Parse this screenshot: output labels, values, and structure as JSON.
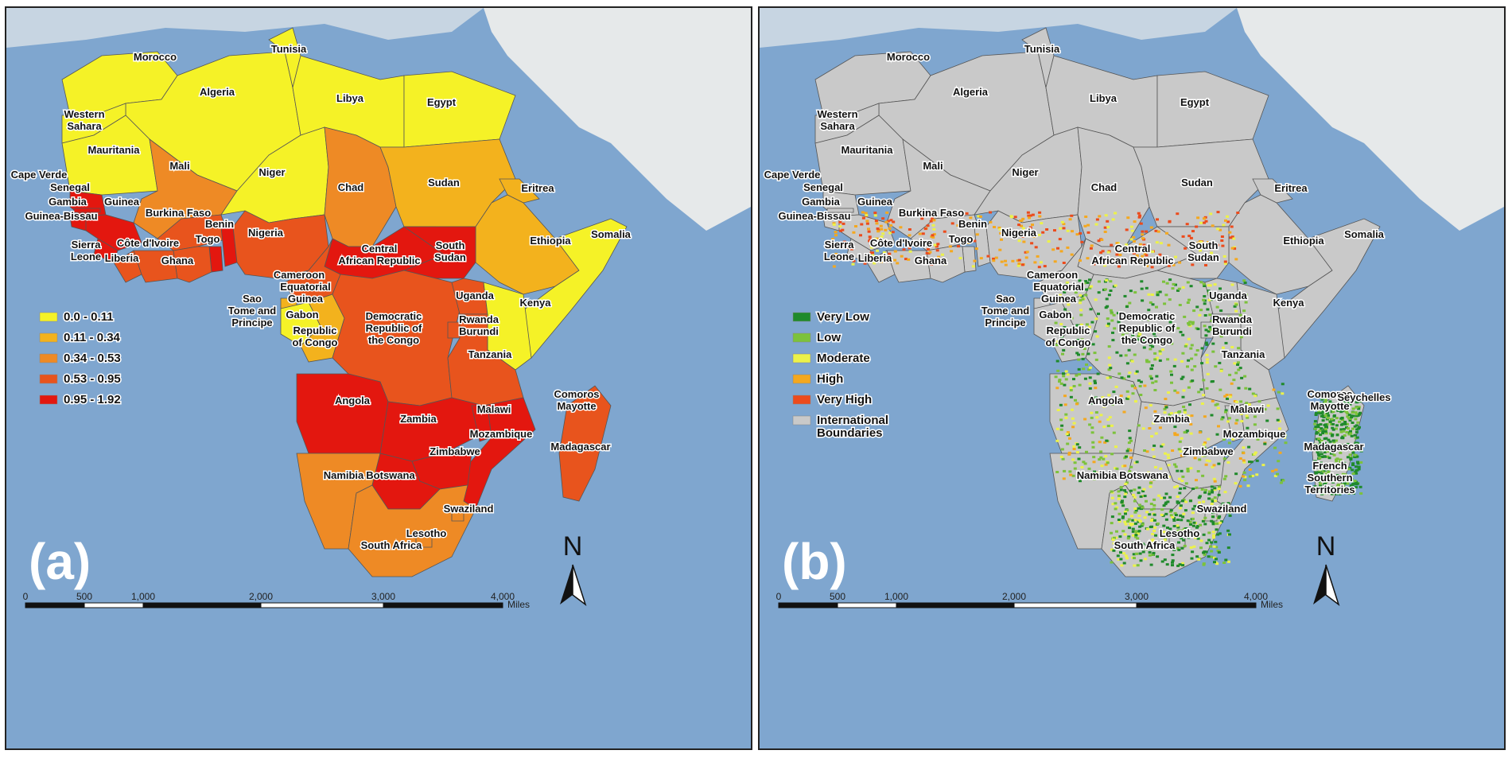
{
  "panels": [
    {
      "id": "a",
      "letter": "(a)",
      "legend": [
        {
          "label": "0.0 - 0.11",
          "color": "#f5f227"
        },
        {
          "label": "0.11 - 0.34",
          "color": "#f3b21d"
        },
        {
          "label": "0.34 - 0.53",
          "color": "#ee8a25"
        },
        {
          "label": "0.53 - 0.95",
          "color": "#e8541d"
        },
        {
          "label": "0.95 - 1.92",
          "color": "#e3170f"
        }
      ]
    },
    {
      "id": "b",
      "letter": "(b)",
      "legend": [
        {
          "label": "Very Low",
          "color": "#1f8a2b"
        },
        {
          "label": "Low",
          "color": "#7cc23b"
        },
        {
          "label": "Moderate",
          "color": "#ecf24a"
        },
        {
          "label": "High",
          "color": "#f4a81f"
        },
        {
          "label": "Very High",
          "color": "#ec4b1c"
        },
        {
          "label": "International\nBoundaries",
          "color": "#c9c9c9"
        }
      ]
    }
  ],
  "countries": {
    "Morocco": "Morocco",
    "Tunisia": "Tunisia",
    "Algeria": "Algeria",
    "Libya": "Libya",
    "Egypt": "Egypt",
    "Western Sahara": "Western\nSahara",
    "Mauritania": "Mauritania",
    "Mali": "Mali",
    "Niger": "Niger",
    "Chad": "Chad",
    "Sudan": "Sudan",
    "Eritrea": "Eritrea",
    "Cape Verde": "Cape Verde",
    "Senegal": "Senegal",
    "Gambia": "Gambia",
    "Guinea": "Guinea",
    "Guinea-Bissau": "Guinea-Bissau",
    "Burkina Faso": "Burkina Faso",
    "Benin": "Benin",
    "Togo": "Togo",
    "Nigeria": "Nigeria",
    "Sierra Leone": "Sierra\nLeone",
    "Cote d'Ivoire": "Côte d'Ivoire",
    "Liberia": "Liberia",
    "Ghana": "Ghana",
    "Central African Republic": "Central\nAfrican Republic",
    "South Sudan": "South\nSudan",
    "Ethiopia": "Ethiopia",
    "Somalia": "Somalia",
    "Cameroon": "Cameroon",
    "Equatorial Guinea": "Equatorial\nGuinea",
    "Sao Tome": "Sao\nTome and\nPrincipe",
    "Gabon": "Gabon",
    "Republic of Congo": "Republic\nof Congo",
    "Uganda": "Uganda",
    "Kenya": "Kenya",
    "DRC": "Democratic\nRepublic of\nthe Congo",
    "Rwanda Burundi": "Rwanda\nBurundi",
    "Tanzania": "Tanzania",
    "Angola": "Angola",
    "Zambia": "Zambia",
    "Malawi": "Malawi",
    "Mozambique": "Mozambique",
    "Zimbabwe": "Zimbabwe",
    "Comoros Mayotte": "Comoros\nMayotte",
    "Madagascar": "Madagascar",
    "Namibia": "Namibia",
    "Botswana": "Botswana",
    "Swaziland": "Swaziland",
    "Lesotho": "Lesotho",
    "South Africa": "South Africa",
    "Seychelles": "Seychelles",
    "French Southern Territories": "French\nSouthern\nTerritories"
  },
  "scale_bar": {
    "ticks": [
      "0",
      "500",
      "1,000",
      "2,000",
      "3,000",
      "4,000"
    ],
    "unit": "Miles"
  },
  "north_label": "N",
  "colors": {
    "ocean": "#7fa6cf",
    "land_bg": "#e6e9ea",
    "boundary_fill": "#c9c9c9",
    "border": "#555555"
  }
}
